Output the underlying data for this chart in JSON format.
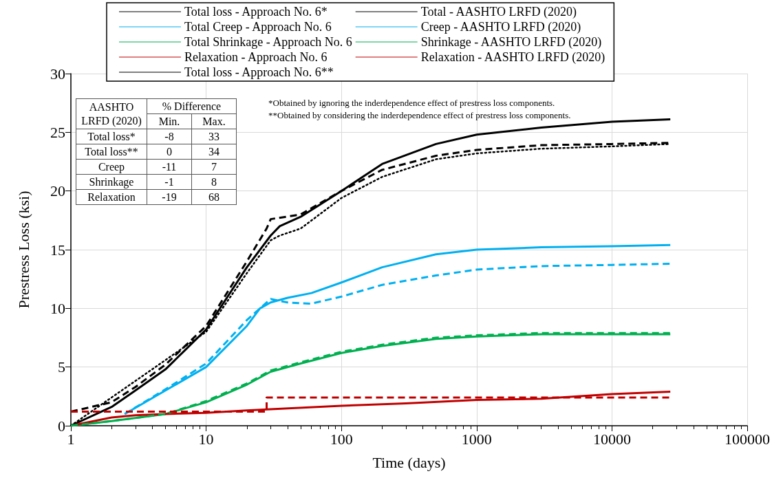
{
  "chart_data": {
    "type": "line",
    "xlabel": "Time (days)",
    "ylabel": "Prestress Loss (ksi)",
    "log": "x",
    "xlim": [
      1,
      100000
    ],
    "xticks": [
      1,
      10,
      100,
      1000,
      10000,
      100000
    ],
    "ylim": [
      0,
      30
    ],
    "yticks": [
      0,
      5,
      10,
      15,
      20,
      25,
      30
    ],
    "grid": true,
    "legend": "top",
    "marker": "none",
    "annotations": [
      "*Obtained by ignoring the inderdependence effect of prestress loss components.",
      "**Obtained by considering the inderdependence effect of prestress loss components.",
      "AASHTO LRFD (2020)",
      "% Difference",
      "Min.",
      "Max.",
      "Total loss*",
      "-8",
      "33",
      "Total loss**",
      "0",
      "34",
      "Creep",
      "-11",
      "7",
      "Shrinkage",
      "-1",
      "8",
      "Relaxation",
      "-19",
      "68"
    ],
    "series": [
      {
        "name": "Total loss - Approach No. 6*",
        "color": "#000000",
        "line_style": "solid",
        "x": [
          1,
          2,
          3,
          5,
          10,
          20,
          30,
          35,
          50,
          100,
          200,
          500,
          1000,
          3000,
          10000,
          27000
        ],
        "values": [
          0,
          1.6,
          3,
          4.8,
          8.2,
          13.5,
          16.2,
          17,
          17.8,
          20,
          22.3,
          24,
          24.8,
          25.4,
          25.9,
          26.1
        ]
      },
      {
        "name": "Total Creep - Approach No. 6",
        "color": "#00b0f0",
        "line_style": "solid",
        "x": [
          2.5,
          5,
          10,
          20,
          25,
          30,
          40,
          60,
          100,
          200,
          500,
          1000,
          3000,
          10000,
          27000
        ],
        "values": [
          1,
          3,
          5,
          8.5,
          10,
          10.5,
          10.9,
          11.3,
          12.2,
          13.5,
          14.6,
          15,
          15.2,
          15.3,
          15.4
        ]
      },
      {
        "name": "Total Shrinkage - Approach No. 6",
        "color": "#00b050",
        "line_style": "solid",
        "x": [
          1,
          2,
          5,
          10,
          20,
          30,
          50,
          100,
          200,
          500,
          1000,
          3000,
          10000,
          27000
        ],
        "values": [
          0,
          0.4,
          1,
          2,
          3.5,
          4.6,
          5.3,
          6.2,
          6.8,
          7.4,
          7.6,
          7.8,
          7.8,
          7.8
        ]
      },
      {
        "name": "Relaxation - Approach No. 6",
        "color": "#c00000",
        "line_style": "solid",
        "x": [
          1,
          2,
          3,
          5,
          10,
          20,
          30,
          100,
          300,
          1000,
          3000,
          10000,
          27000
        ],
        "values": [
          0,
          0.7,
          0.9,
          1,
          1.1,
          1.3,
          1.4,
          1.7,
          1.9,
          2.2,
          2.3,
          2.7,
          2.9
        ]
      },
      {
        "name": "Total loss - Approach No. 6**",
        "color": "#000000",
        "line_style": "dotted",
        "x": [
          1,
          10,
          20,
          30,
          35,
          50,
          100,
          200,
          500,
          1000,
          3000,
          10000,
          27000
        ],
        "values": [
          0,
          8,
          13,
          15.8,
          16.2,
          16.8,
          19.4,
          21.2,
          22.7,
          23.2,
          23.6,
          23.8,
          24
        ]
      },
      {
        "name": "Total - AASHTO LRFD (2020)",
        "color": "#000000",
        "line_style": "dashed",
        "x": [
          1,
          2,
          3,
          5,
          10,
          20,
          28,
          30,
          50,
          100,
          200,
          500,
          1000,
          3000,
          10000,
          27000
        ],
        "values": [
          1.2,
          2,
          3.3,
          5.2,
          8.5,
          14,
          16.8,
          17.6,
          18,
          20,
          21.8,
          23,
          23.5,
          23.9,
          24,
          24.1
        ]
      },
      {
        "name": "Creep - AASHTO LRFD (2020)",
        "color": "#00b0f0",
        "line_style": "dashed",
        "x": [
          2.5,
          5,
          10,
          20,
          30,
          40,
          60,
          100,
          200,
          500,
          1000,
          3000,
          10000,
          27000
        ],
        "values": [
          1,
          3.1,
          5.3,
          9,
          10.8,
          10.5,
          10.4,
          11,
          12,
          12.8,
          13.3,
          13.6,
          13.7,
          13.8
        ]
      },
      {
        "name": "Shrinkage - AASHTO LRFD (2020)",
        "color": "#00b050",
        "line_style": "dashed",
        "x": [
          1,
          2,
          5,
          10,
          20,
          30,
          50,
          100,
          200,
          500,
          1000,
          3000,
          10000,
          27000
        ],
        "values": [
          0,
          0.4,
          1,
          2.1,
          3.6,
          4.7,
          5.4,
          6.3,
          6.9,
          7.5,
          7.7,
          7.9,
          7.9,
          7.9
        ]
      },
      {
        "name": "Relaxation - AASHTO LRFD (2020)",
        "color": "#c00000",
        "line_style": "dashed",
        "x": [
          1,
          28,
          28,
          27000
        ],
        "values": [
          1.2,
          1.2,
          2.4,
          2.4
        ]
      }
    ]
  }
}
